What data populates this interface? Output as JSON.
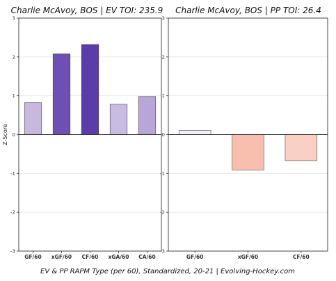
{
  "chart_data": [
    {
      "type": "bar",
      "title": "Charlie McAvoy, BOS  |  EV TOI: 235.9",
      "ylabel": "Z-Score",
      "ylim": [
        -3,
        3
      ],
      "yticks": [
        "3",
        "2",
        "1",
        "0",
        "-1",
        "-2",
        "-3"
      ],
      "grid": true,
      "categories": [
        "GF/60",
        "xGF/60",
        "CF/60",
        "xGA/60",
        "CA/60"
      ],
      "values": [
        0.82,
        2.08,
        2.32,
        0.78,
        0.98
      ],
      "colors": [
        "#c7b8e0",
        "#6e4fb3",
        "#5b3ca8",
        "#c9bce3",
        "#b8a6d8"
      ]
    },
    {
      "type": "bar",
      "title": "Charlie McAvoy, BOS  |  PP TOI: 26.4",
      "ylabel": "",
      "ylim": [
        -3,
        3
      ],
      "yticks": [
        "3",
        "2",
        "1",
        "0",
        "-1",
        "-2",
        "-3"
      ],
      "grid": true,
      "categories": [
        "GF/60",
        "xGF/60",
        "CF/60"
      ],
      "values": [
        0.11,
        -0.91,
        -0.67
      ],
      "colors": [
        "#f2f2f8",
        "#f8bfae",
        "#fbd0c4"
      ]
    }
  ],
  "footer": "EV & PP RAPM Type (per 60), Standardized, 20-21    |    Evolving-Hockey.com"
}
